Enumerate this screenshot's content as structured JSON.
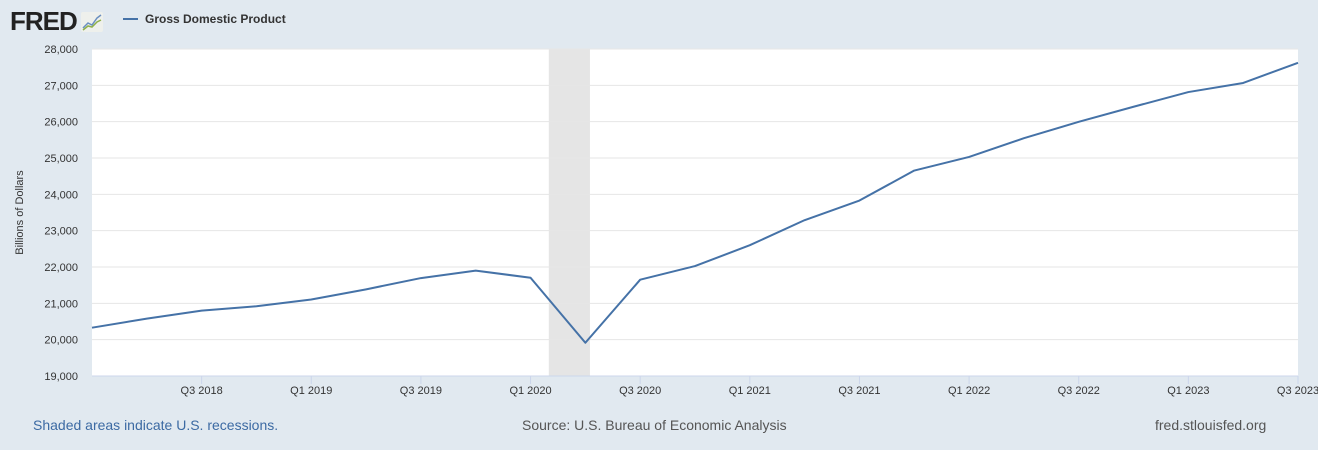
{
  "header": {
    "logo": "FRED",
    "legend_label": "Gross Domestic Product"
  },
  "footer": {
    "note": "Shaded areas indicate U.S. recessions.",
    "source": "Source: U.S. Bureau of Economic Analysis",
    "url": "fred.stlouisfed.org"
  },
  "chart_data": {
    "type": "line",
    "title": "",
    "ylabel": "Billions of Dollars",
    "xlabel": "",
    "ylim": [
      19000,
      28000
    ],
    "yticks": [
      19000,
      20000,
      21000,
      22000,
      23000,
      24000,
      25000,
      26000,
      27000,
      28000
    ],
    "ytick_labels": [
      "19,000",
      "20,000",
      "21,000",
      "22,000",
      "23,000",
      "24,000",
      "25,000",
      "26,000",
      "27,000",
      "28,000"
    ],
    "xtick_labels": [
      "Q3 2018",
      "Q1 2019",
      "Q3 2019",
      "Q1 2020",
      "Q3 2020",
      "Q1 2021",
      "Q3 2021",
      "Q1 2022",
      "Q3 2022",
      "Q1 2023",
      "Q3 2023"
    ],
    "grid": true,
    "recessions": [
      {
        "start": "2020-02",
        "end": "2020-04"
      }
    ],
    "series": [
      {
        "name": "Gross Domestic Product",
        "color": "#4572a7",
        "x": [
          "Q1 2018",
          "Q2 2018",
          "Q3 2018",
          "Q4 2018",
          "Q1 2019",
          "Q2 2019",
          "Q3 2019",
          "Q4 2019",
          "Q1 2020",
          "Q2 2020",
          "Q3 2020",
          "Q4 2020",
          "Q1 2021",
          "Q2 2021",
          "Q3 2021",
          "Q4 2021",
          "Q1 2022",
          "Q2 2022",
          "Q3 2022",
          "Q4 2022",
          "Q1 2023",
          "Q2 2023",
          "Q3 2023"
        ],
        "values": [
          20330,
          20580,
          20800,
          20920,
          21105,
          21385,
          21695,
          21900,
          21705,
          19915,
          21650,
          22025,
          22600,
          23290,
          23830,
          24655,
          25030,
          25545,
          25995,
          26410,
          26815,
          27065,
          27620
        ]
      }
    ]
  }
}
